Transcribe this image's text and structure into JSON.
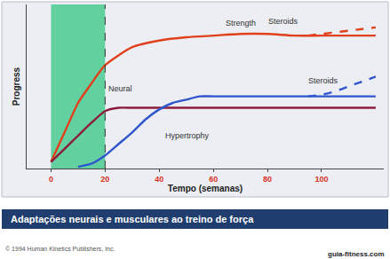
{
  "chart_data": {
    "type": "line",
    "x_label": "Tempo (semanas)",
    "y_label": "Progress",
    "xlim": [
      -9,
      123
    ],
    "xticks": [
      0,
      20,
      40,
      60,
      80,
      100
    ],
    "ylim": [
      0,
      100
    ],
    "yticks": [],
    "tick_labels": "x",
    "grid": false,
    "highlight_x": [
      0,
      20
    ],
    "series": [
      {
        "name": "Strength",
        "color": "#e0401c",
        "line_style": "solid",
        "x": [
          0,
          5,
          10,
          15,
          20,
          30,
          40,
          50,
          60,
          70,
          80,
          90,
          100,
          110,
          120
        ],
        "values": [
          4,
          22,
          40,
          52,
          63,
          74,
          78,
          80,
          81,
          82,
          82,
          81,
          81,
          81,
          81
        ]
      },
      {
        "name": "Steroids",
        "color": "#e0401c",
        "line_style": "dash",
        "x": [
          95,
          100,
          105,
          110,
          115,
          120
        ],
        "values": [
          81,
          82,
          83,
          84,
          85,
          86
        ]
      },
      {
        "name": "Neural",
        "color": "#8c1c3c",
        "line_style": "solid",
        "x": [
          0,
          5,
          10,
          15,
          20,
          25,
          30,
          40,
          50,
          60,
          70,
          80,
          90,
          100,
          110,
          120
        ],
        "values": [
          4,
          12,
          20,
          28,
          35,
          37,
          37,
          37,
          37,
          37,
          37,
          37,
          37,
          37,
          37,
          37
        ]
      },
      {
        "name": "Hypertrophy",
        "color": "#2f56cc",
        "line_style": "solid",
        "x": [
          10,
          15,
          20,
          25,
          30,
          35,
          40,
          45,
          50,
          55,
          60,
          70,
          80,
          90,
          100,
          110,
          120
        ],
        "values": [
          1,
          3,
          8,
          15,
          22,
          30,
          36,
          40,
          42,
          44,
          44,
          44,
          44,
          44,
          44,
          44,
          44
        ]
      },
      {
        "name": "Steroids",
        "color": "#2f56cc",
        "line_style": "dash",
        "x": [
          95,
          100,
          105,
          110,
          115,
          120
        ],
        "values": [
          44,
          45,
          47,
          50,
          53,
          56
        ]
      }
    ],
    "caption": "Adaptações neurais e musculares ao treino de força",
    "copyright": "© 1994 Human Kinetics Publishers, Inc.",
    "source": "guia-fitness.com"
  }
}
